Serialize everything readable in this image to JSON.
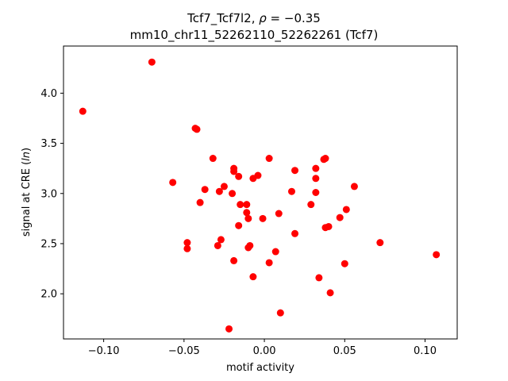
{
  "chart_data": {
    "type": "scatter",
    "title_line1_prefix": "Tcf7_Tcf7l2, ",
    "title_rho_symbol": "ρ",
    "title_rho_value": " = −0.35",
    "title_line2": "mm10_chr11_52262110_52262261 (Tcf7)",
    "xlabel": "motif activity",
    "ylabel_prefix": "signal at CRE (",
    "ylabel_var": "ln",
    "ylabel_suffix": ")",
    "xlim": [
      -0.125,
      0.12
    ],
    "ylim": [
      1.55,
      4.47
    ],
    "x_ticks": [
      -0.1,
      -0.05,
      0.0,
      0.05,
      0.1
    ],
    "x_tick_labels": [
      "−0.10",
      "−0.05",
      "0.00",
      "0.05",
      "0.10"
    ],
    "y_ticks": [
      2.0,
      2.5,
      3.0,
      3.5,
      4.0
    ],
    "y_tick_labels": [
      "2.0",
      "2.5",
      "3.0",
      "3.5",
      "4.0"
    ],
    "marker_color": "#ff0000",
    "points": [
      {
        "x": -0.113,
        "y": 3.82
      },
      {
        "x": -0.07,
        "y": 4.31
      },
      {
        "x": -0.057,
        "y": 3.11
      },
      {
        "x": -0.048,
        "y": 2.51
      },
      {
        "x": -0.048,
        "y": 2.45
      },
      {
        "x": -0.043,
        "y": 3.65
      },
      {
        "x": -0.042,
        "y": 3.64
      },
      {
        "x": -0.04,
        "y": 2.91
      },
      {
        "x": -0.037,
        "y": 3.04
      },
      {
        "x": -0.032,
        "y": 3.35
      },
      {
        "x": -0.029,
        "y": 2.48
      },
      {
        "x": -0.028,
        "y": 3.02
      },
      {
        "x": -0.027,
        "y": 2.54
      },
      {
        "x": -0.025,
        "y": 3.07
      },
      {
        "x": -0.022,
        "y": 1.65
      },
      {
        "x": -0.02,
        "y": 3.0
      },
      {
        "x": -0.019,
        "y": 3.25
      },
      {
        "x": -0.019,
        "y": 3.22
      },
      {
        "x": -0.019,
        "y": 2.33
      },
      {
        "x": -0.016,
        "y": 3.17
      },
      {
        "x": -0.016,
        "y": 2.68
      },
      {
        "x": -0.015,
        "y": 2.89
      },
      {
        "x": -0.011,
        "y": 2.89
      },
      {
        "x": -0.011,
        "y": 2.81
      },
      {
        "x": -0.01,
        "y": 2.46
      },
      {
        "x": -0.01,
        "y": 2.75
      },
      {
        "x": -0.009,
        "y": 2.48
      },
      {
        "x": -0.007,
        "y": 3.15
      },
      {
        "x": -0.007,
        "y": 2.17
      },
      {
        "x": -0.004,
        "y": 3.18
      },
      {
        "x": -0.001,
        "y": 2.75
      },
      {
        "x": 0.003,
        "y": 3.35
      },
      {
        "x": 0.003,
        "y": 2.31
      },
      {
        "x": 0.007,
        "y": 2.42
      },
      {
        "x": 0.009,
        "y": 2.8
      },
      {
        "x": 0.01,
        "y": 1.81
      },
      {
        "x": 0.017,
        "y": 3.02
      },
      {
        "x": 0.019,
        "y": 3.23
      },
      {
        "x": 0.019,
        "y": 2.6
      },
      {
        "x": 0.029,
        "y": 2.89
      },
      {
        "x": 0.032,
        "y": 3.25
      },
      {
        "x": 0.032,
        "y": 3.15
      },
      {
        "x": 0.032,
        "y": 3.01
      },
      {
        "x": 0.034,
        "y": 2.16
      },
      {
        "x": 0.037,
        "y": 3.34
      },
      {
        "x": 0.038,
        "y": 3.35
      },
      {
        "x": 0.038,
        "y": 2.66
      },
      {
        "x": 0.04,
        "y": 2.67
      },
      {
        "x": 0.041,
        "y": 2.01
      },
      {
        "x": 0.047,
        "y": 2.76
      },
      {
        "x": 0.05,
        "y": 2.3
      },
      {
        "x": 0.051,
        "y": 2.84
      },
      {
        "x": 0.056,
        "y": 3.07
      },
      {
        "x": 0.072,
        "y": 2.51
      },
      {
        "x": 0.107,
        "y": 2.39
      }
    ]
  }
}
